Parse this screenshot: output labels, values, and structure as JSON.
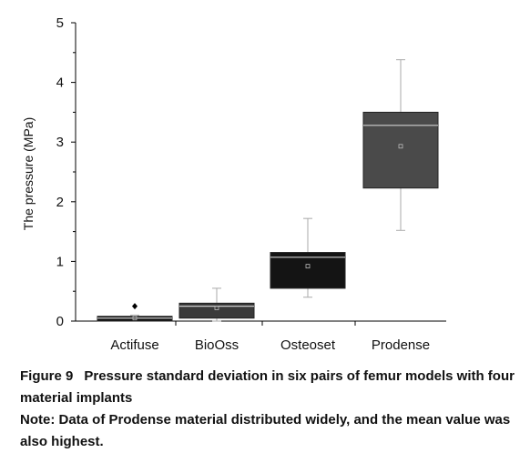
{
  "chart_data": {
    "type": "boxplot",
    "ylabel": "The pressure (MPa)",
    "xlabel": "",
    "ylim": [
      0,
      5
    ],
    "yticks": [
      "0",
      "1",
      "2",
      "3",
      "4",
      "5"
    ],
    "categories": [
      "Actifuse",
      "BioOss",
      "Osteoset",
      "Prodense"
    ],
    "boxes": [
      {
        "name": "Actifuse",
        "whisker_low": 0.0,
        "q1": 0.0,
        "median": 0.05,
        "q3": 0.08,
        "whisker_high": 0.1,
        "mean": 0.05,
        "outliers": [
          0.25
        ],
        "color": "#111111"
      },
      {
        "name": "BioOss",
        "whisker_low": 0.0,
        "q1": 0.05,
        "median": 0.25,
        "q3": 0.3,
        "whisker_high": 0.55,
        "mean": 0.22,
        "outliers": [],
        "color": "#3a3a3a"
      },
      {
        "name": "Osteoset",
        "whisker_low": 0.4,
        "q1": 0.55,
        "median": 1.07,
        "q3": 1.15,
        "whisker_high": 1.72,
        "mean": 0.92,
        "outliers": [],
        "color": "#141414"
      },
      {
        "name": "Prodense",
        "whisker_low": 1.52,
        "q1": 2.23,
        "median": 3.28,
        "q3": 3.5,
        "whisker_high": 4.38,
        "mean": 2.93,
        "outliers": [],
        "color": "#4a4a4a"
      }
    ]
  },
  "caption": {
    "label": "Figure 9",
    "title": "Pressure standard deviation in six pairs of femur models with four material implants",
    "note": "Note: Data of Prodense material distributed widely, and the mean value was also highest."
  }
}
